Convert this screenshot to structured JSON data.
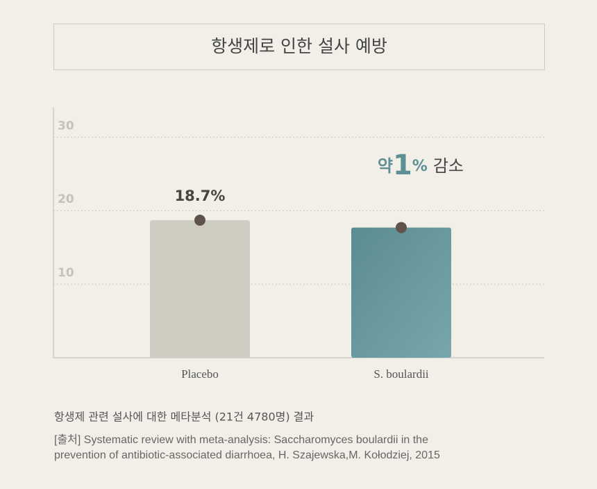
{
  "chart_data": {
    "type": "bar",
    "title": "항생제로 인한 설사 예방",
    "categories": [
      "Placebo",
      "S. boulardii"
    ],
    "series": [
      {
        "colors": [
          "#cfccc1",
          "#64959a"
        ],
        "values": [
          18.7,
          17.7
        ],
        "value_labels": [
          "18.7%",
          null
        ]
      }
    ],
    "ylim": [
      0,
      34
    ],
    "yticks": [
      10,
      20,
      30
    ],
    "grid": true,
    "annotation": {
      "prefix": "약",
      "number": "1",
      "unit": "%",
      "suffix": "감소"
    },
    "caption": "항생제 관련 설사에 대한 메타분석 (21건 4780명) 결과",
    "source": [
      "[출처]  Systematic review with meta-analysis: Saccharomyces boulardii in the",
      "prevention of antibiotic-associated diarrhoea, H. Szajewska,M. Kołodziej, 2015"
    ]
  }
}
